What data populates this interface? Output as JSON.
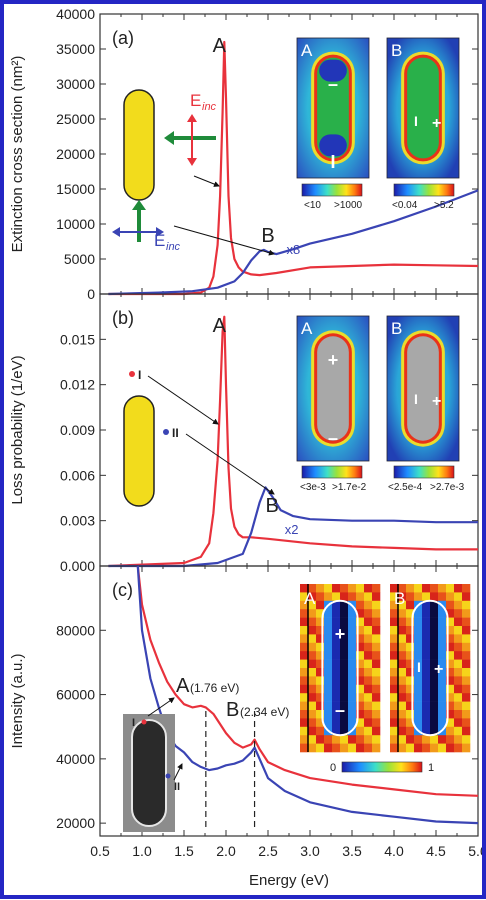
{
  "chart_data": [
    {
      "panel": "(a)",
      "type": "line",
      "ylabel": "Extinction cross section (nm²)",
      "ylim": [
        0,
        40000
      ],
      "xlim": [
        0.5,
        5.0
      ],
      "yticks": [
        "0",
        "5000",
        "10000",
        "15000",
        "20000",
        "25000",
        "30000",
        "35000",
        "40000"
      ],
      "series": [
        {
          "color": "#e8323c",
          "x": [
            0.6,
            1.5,
            1.7,
            1.8,
            1.85,
            1.9,
            1.93,
            1.96,
            1.98,
            2.0,
            2.03,
            2.06,
            2.1,
            2.15,
            2.2,
            2.3,
            2.4,
            2.6,
            3.0,
            3.5,
            4.0,
            4.5,
            5.0
          ],
          "y": [
            0,
            0,
            200,
            900,
            2500,
            7000,
            14000,
            26000,
            36000,
            28000,
            14000,
            8000,
            5000,
            3800,
            3200,
            2800,
            2700,
            3000,
            3800,
            4000,
            4200,
            4100,
            4000
          ]
        },
        {
          "color": "#3a44b4",
          "x": [
            0.6,
            1.2,
            1.6,
            1.9,
            2.1,
            2.2,
            2.3,
            2.4,
            2.45,
            2.5,
            2.6,
            2.8,
            3.0,
            3.5,
            4.0,
            4.5,
            5.0
          ],
          "y": [
            0,
            200,
            400,
            900,
            1800,
            3000,
            4800,
            6100,
            6300,
            6000,
            5700,
            6400,
            7200,
            8600,
            10400,
            12500,
            14800
          ]
        }
      ],
      "annotations": [
        "A",
        "B",
        "x8",
        "E",
        "inc",
        "E",
        "inc",
        "A",
        "B",
        "A",
        "B",
        "+",
        "–",
        "I",
        "+"
      ],
      "colorbars": [
        {
          "min": "<10",
          "max": ">1000"
        },
        {
          "min": "<0.04",
          "max": ">5.2"
        }
      ]
    },
    {
      "panel": "(b)",
      "type": "line",
      "ylabel": "Loss probability (1/eV)",
      "ylim": [
        0,
        0.018
      ],
      "xlim": [
        0.5,
        5.0
      ],
      "yticks": [
        "0.000",
        "0.003",
        "0.006",
        "0.009",
        "0.012",
        "0.015"
      ],
      "series": [
        {
          "color": "#e8323c",
          "x": [
            0.6,
            1.5,
            1.7,
            1.8,
            1.85,
            1.9,
            1.93,
            1.96,
            1.98,
            2.0,
            2.03,
            2.06,
            2.1,
            2.15,
            2.2,
            2.3,
            2.5,
            3.0,
            3.5,
            4.0,
            4.5,
            5.0
          ],
          "y": [
            0,
            0.0002,
            0.0006,
            0.0015,
            0.0035,
            0.007,
            0.011,
            0.0155,
            0.0165,
            0.012,
            0.0065,
            0.0038,
            0.0026,
            0.0021,
            0.0019,
            0.0019,
            0.0018,
            0.0015,
            0.0013,
            0.0012,
            0.0011,
            0.0011
          ]
        },
        {
          "color": "#3a44b4",
          "x": [
            0.6,
            1.5,
            1.9,
            2.2,
            2.3,
            2.4,
            2.47,
            2.55,
            2.65,
            2.8,
            3.0,
            3.5,
            4.0,
            4.5,
            5.0
          ],
          "y": [
            0,
            0,
            0.0002,
            0.0008,
            0.0022,
            0.0042,
            0.0052,
            0.0046,
            0.0037,
            0.0033,
            0.0031,
            0.003,
            0.003,
            0.0029,
            0.0029
          ]
        }
      ],
      "annotations": [
        "A",
        "B",
        "x2",
        "I",
        "II",
        "A",
        "B",
        "+",
        "–",
        "I",
        "+"
      ],
      "colorbars": [
        {
          "min": "<3e-3",
          "max": ">1.7e-2"
        },
        {
          "min": "<2.5e-4",
          "max": ">2.7e-3"
        }
      ]
    },
    {
      "panel": "(c)",
      "type": "line",
      "ylabel": "Intensity (a.u.)",
      "xlabel": "Energy (eV)",
      "ylim": [
        16000,
        100000
      ],
      "xlim": [
        0.5,
        5.0
      ],
      "xticks": [
        "0.5",
        "1.0",
        "1.5",
        "2.0",
        "2.5",
        "3.0",
        "3.5",
        "4.0",
        "4.5",
        "5.0"
      ],
      "yticks": [
        "20000",
        "40000",
        "60000",
        "80000"
      ],
      "series": [
        {
          "color": "#e8323c",
          "x": [
            0.95,
            1.0,
            1.1,
            1.2,
            1.3,
            1.4,
            1.5,
            1.6,
            1.7,
            1.76,
            1.85,
            2.0,
            2.1,
            2.2,
            2.3,
            2.34,
            2.4,
            2.5,
            2.7,
            3.0,
            3.5,
            4.0,
            4.5,
            5.0
          ],
          "y": [
            100000,
            88000,
            77000,
            70000,
            64000,
            60000,
            57000,
            56000,
            56500,
            56000,
            54000,
            48000,
            45000,
            43500,
            44500,
            46000,
            43000,
            39000,
            36500,
            34000,
            32000,
            30500,
            29000,
            28500
          ]
        },
        {
          "color": "#3a44b4",
          "x": [
            0.95,
            1.0,
            1.1,
            1.2,
            1.3,
            1.4,
            1.5,
            1.6,
            1.7,
            1.8,
            1.9,
            2.0,
            2.1,
            2.2,
            2.3,
            2.34,
            2.4,
            2.5,
            2.7,
            3.0,
            3.5,
            4.0,
            4.5,
            5.0
          ],
          "y": [
            100000,
            80000,
            65000,
            56000,
            48000,
            44000,
            42000,
            39000,
            37500,
            36500,
            37000,
            38000,
            38500,
            39500,
            42000,
            43500,
            40000,
            34000,
            30000,
            26500,
            23500,
            22000,
            20500,
            20000
          ]
        }
      ],
      "annotations": [
        "A",
        "(1.76 eV)",
        "B",
        "(2.34 eV)",
        "I",
        "II",
        "A",
        "B",
        "+",
        "–",
        "I",
        "+"
      ],
      "colorbars": [
        {
          "min": "0",
          "max": "1"
        }
      ]
    }
  ],
  "colors": {
    "frame": "#2426c4",
    "red": "#e8323c",
    "blue": "#3a44b4",
    "rod": "#f2dc1c",
    "green": "#1f8b3a"
  }
}
